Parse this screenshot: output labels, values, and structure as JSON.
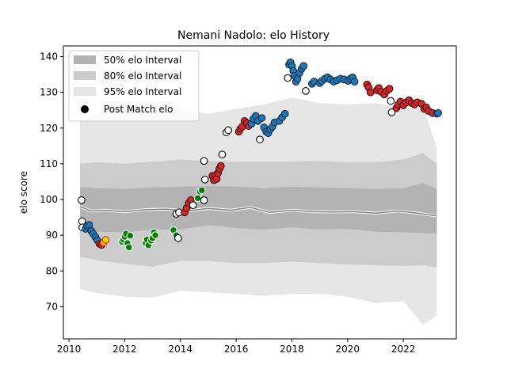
{
  "chart_data": {
    "type": "scatter",
    "title": "Nemani Nadolo: elo History",
    "xlabel": "",
    "ylabel": "elo score",
    "xlim": [
      2009.8,
      2023.9
    ],
    "ylim": [
      61,
      143
    ],
    "xticks": [
      2010,
      2012,
      2014,
      2016,
      2018,
      2020,
      2022
    ],
    "yticks": [
      70,
      80,
      90,
      100,
      110,
      120,
      130,
      140
    ],
    "grid": false,
    "legend_position": "top-left",
    "legend": {
      "band50": "50% elo Interval",
      "band80": "80% elo Interval",
      "band95": "95% elo Interval",
      "points": "Post Match elo"
    },
    "band_colors": {
      "band50": "#b3b3b3",
      "band80": "#cccccc",
      "band95": "#e6e6e6"
    },
    "point_colors": {
      "blue": "#1f77b4",
      "red": "#d62728",
      "green": "#008000",
      "white": "#ffffff",
      "orange": "#ff7f0e"
    },
    "mean_line": {
      "x": [
        2010.4,
        2010.8,
        2011.3,
        2012.0,
        2012.8,
        2013.5,
        2014.2,
        2015.0,
        2015.8,
        2016.5,
        2017.2,
        2018.0,
        2018.8,
        2019.5,
        2020.2,
        2021.0,
        2021.8,
        2022.5,
        2023.2
      ],
      "y": [
        98.0,
        96.8,
        97.0,
        96.6,
        97.2,
        97.3,
        96.8,
        97.5,
        97.0,
        97.8,
        96.4,
        97.0,
        96.6,
        96.5,
        96.6,
        96.2,
        96.8,
        96.2,
        95.4
      ]
    },
    "bands": {
      "x": [
        2010.4,
        2011.0,
        2012.0,
        2013.0,
        2014.0,
        2015.0,
        2016.0,
        2017.0,
        2018.0,
        2019.0,
        2020.0,
        2021.0,
        2022.0,
        2022.7,
        2023.2
      ],
      "p25": [
        92.0,
        91.0,
        90.8,
        91.6,
        91.6,
        92.8,
        92.0,
        91.6,
        92.2,
        91.6,
        91.8,
        91.0,
        90.8,
        90.6,
        90.5
      ],
      "p75": [
        103.5,
        103.2,
        103.0,
        103.4,
        103.6,
        103.8,
        103.6,
        103.2,
        103.6,
        103.4,
        103.2,
        103.0,
        103.2,
        104.6,
        103.0
      ],
      "p10": [
        84.0,
        83.0,
        82.0,
        81.2,
        82.8,
        82.8,
        82.2,
        82.2,
        82.6,
        82.2,
        81.8,
        81.6,
        81.4,
        81.6,
        81.0
      ],
      "p90": [
        110.0,
        110.4,
        110.0,
        110.6,
        111.2,
        110.8,
        110.6,
        110.6,
        110.6,
        110.8,
        110.4,
        110.4,
        111.2,
        113.0,
        110.0
      ],
      "p2_5": [
        75.0,
        73.8,
        72.8,
        72.6,
        74.4,
        74.0,
        73.6,
        73.0,
        73.6,
        73.6,
        72.8,
        71.0,
        71.6,
        65.0,
        67.5
      ],
      "p97_5": [
        122.0,
        124.0,
        126.6,
        126.8,
        125.0,
        124.0,
        125.4,
        126.6,
        128.6,
        127.0,
        126.6,
        127.0,
        125.6,
        126.2,
        114.5
      ]
    },
    "series": [
      {
        "name": "Post Match elo",
        "points": [
          {
            "x": 2010.45,
            "y": 99.8,
            "c": "white"
          },
          {
            "x": 2010.47,
            "y": 93.9,
            "c": "white"
          },
          {
            "x": 2010.48,
            "y": 92.2,
            "c": "white"
          },
          {
            "x": 2010.6,
            "y": 91.8,
            "c": "blue"
          },
          {
            "x": 2010.65,
            "y": 92.6,
            "c": "blue"
          },
          {
            "x": 2010.72,
            "y": 92.9,
            "c": "blue"
          },
          {
            "x": 2010.8,
            "y": 91.2,
            "c": "blue"
          },
          {
            "x": 2010.87,
            "y": 90.4,
            "c": "blue"
          },
          {
            "x": 2010.95,
            "y": 89.5,
            "c": "blue"
          },
          {
            "x": 2011.02,
            "y": 88.6,
            "c": "blue"
          },
          {
            "x": 2011.1,
            "y": 87.6,
            "c": "red"
          },
          {
            "x": 2011.17,
            "y": 87.3,
            "c": "red"
          },
          {
            "x": 2011.25,
            "y": 88.0,
            "c": "orange"
          },
          {
            "x": 2011.32,
            "y": 88.7,
            "c": "orange"
          },
          {
            "x": 2011.9,
            "y": 88.2,
            "c": "green"
          },
          {
            "x": 2011.95,
            "y": 88.8,
            "c": "green"
          },
          {
            "x": 2012.0,
            "y": 89.6,
            "c": "green"
          },
          {
            "x": 2012.05,
            "y": 90.4,
            "c": "green"
          },
          {
            "x": 2012.1,
            "y": 87.8,
            "c": "green"
          },
          {
            "x": 2012.15,
            "y": 86.6,
            "c": "green"
          },
          {
            "x": 2012.2,
            "y": 89.9,
            "c": "green"
          },
          {
            "x": 2012.75,
            "y": 87.8,
            "c": "green"
          },
          {
            "x": 2012.8,
            "y": 88.8,
            "c": "green"
          },
          {
            "x": 2012.85,
            "y": 87.2,
            "c": "green"
          },
          {
            "x": 2012.95,
            "y": 88.5,
            "c": "green"
          },
          {
            "x": 2013.0,
            "y": 89.2,
            "c": "green"
          },
          {
            "x": 2013.05,
            "y": 90.8,
            "c": "green"
          },
          {
            "x": 2013.1,
            "y": 90.0,
            "c": "green"
          },
          {
            "x": 2013.75,
            "y": 91.4,
            "c": "green"
          },
          {
            "x": 2013.85,
            "y": 90.0,
            "c": "green"
          },
          {
            "x": 2013.92,
            "y": 89.2,
            "c": "white"
          },
          {
            "x": 2013.85,
            "y": 96.0,
            "c": "white"
          },
          {
            "x": 2013.95,
            "y": 96.4,
            "c": "white"
          },
          {
            "x": 2014.15,
            "y": 96.4,
            "c": "red"
          },
          {
            "x": 2014.22,
            "y": 97.6,
            "c": "red"
          },
          {
            "x": 2014.3,
            "y": 99.0,
            "c": "red"
          },
          {
            "x": 2014.37,
            "y": 99.8,
            "c": "red"
          },
          {
            "x": 2014.45,
            "y": 98.4,
            "c": "white"
          },
          {
            "x": 2014.62,
            "y": 100.4,
            "c": "green"
          },
          {
            "x": 2014.7,
            "y": 102.2,
            "c": "green"
          },
          {
            "x": 2014.77,
            "y": 102.6,
            "c": "green"
          },
          {
            "x": 2014.85,
            "y": 99.8,
            "c": "white"
          },
          {
            "x": 2014.85,
            "y": 110.8,
            "c": "white"
          },
          {
            "x": 2014.88,
            "y": 105.6,
            "c": "white"
          },
          {
            "x": 2015.15,
            "y": 106.6,
            "c": "red"
          },
          {
            "x": 2015.2,
            "y": 105.4,
            "c": "red"
          },
          {
            "x": 2015.25,
            "y": 106.8,
            "c": "red"
          },
          {
            "x": 2015.3,
            "y": 105.8,
            "c": "red"
          },
          {
            "x": 2015.35,
            "y": 107.4,
            "c": "red"
          },
          {
            "x": 2015.4,
            "y": 108.6,
            "c": "red"
          },
          {
            "x": 2015.45,
            "y": 109.4,
            "c": "red"
          },
          {
            "x": 2015.5,
            "y": 112.6,
            "c": "white"
          },
          {
            "x": 2015.65,
            "y": 118.8,
            "c": "white"
          },
          {
            "x": 2015.72,
            "y": 119.4,
            "c": "white"
          },
          {
            "x": 2016.1,
            "y": 119.0,
            "c": "red"
          },
          {
            "x": 2016.15,
            "y": 119.8,
            "c": "red"
          },
          {
            "x": 2016.22,
            "y": 120.4,
            "c": "red"
          },
          {
            "x": 2016.3,
            "y": 122.0,
            "c": "red"
          },
          {
            "x": 2016.38,
            "y": 121.4,
            "c": "red"
          },
          {
            "x": 2016.45,
            "y": 120.6,
            "c": "red"
          },
          {
            "x": 2016.55,
            "y": 121.2,
            "c": "blue"
          },
          {
            "x": 2016.62,
            "y": 122.6,
            "c": "blue"
          },
          {
            "x": 2016.7,
            "y": 123.4,
            "c": "blue"
          },
          {
            "x": 2016.78,
            "y": 122.0,
            "c": "blue"
          },
          {
            "x": 2016.85,
            "y": 116.8,
            "c": "white"
          },
          {
            "x": 2016.92,
            "y": 122.8,
            "c": "blue"
          },
          {
            "x": 2017.0,
            "y": 120.2,
            "c": "blue"
          },
          {
            "x": 2017.08,
            "y": 119.0,
            "c": "blue"
          },
          {
            "x": 2017.15,
            "y": 118.6,
            "c": "blue"
          },
          {
            "x": 2017.22,
            "y": 119.6,
            "c": "blue"
          },
          {
            "x": 2017.3,
            "y": 120.4,
            "c": "blue"
          },
          {
            "x": 2017.38,
            "y": 121.6,
            "c": "blue"
          },
          {
            "x": 2017.55,
            "y": 122.0,
            "c": "blue"
          },
          {
            "x": 2017.65,
            "y": 123.0,
            "c": "blue"
          },
          {
            "x": 2017.75,
            "y": 124.0,
            "c": "blue"
          },
          {
            "x": 2017.85,
            "y": 134.0,
            "c": "white"
          },
          {
            "x": 2017.9,
            "y": 137.8,
            "c": "blue"
          },
          {
            "x": 2017.95,
            "y": 138.4,
            "c": "blue"
          },
          {
            "x": 2018.0,
            "y": 137.4,
            "c": "blue"
          },
          {
            "x": 2018.05,
            "y": 136.0,
            "c": "blue"
          },
          {
            "x": 2018.1,
            "y": 134.6,
            "c": "blue"
          },
          {
            "x": 2018.15,
            "y": 133.0,
            "c": "blue"
          },
          {
            "x": 2018.2,
            "y": 133.8,
            "c": "blue"
          },
          {
            "x": 2018.27,
            "y": 135.4,
            "c": "blue"
          },
          {
            "x": 2018.35,
            "y": 136.6,
            "c": "blue"
          },
          {
            "x": 2018.42,
            "y": 137.4,
            "c": "blue"
          },
          {
            "x": 2018.5,
            "y": 130.4,
            "c": "white"
          },
          {
            "x": 2018.72,
            "y": 132.4,
            "c": "blue"
          },
          {
            "x": 2018.8,
            "y": 133.0,
            "c": "blue"
          },
          {
            "x": 2019.0,
            "y": 132.6,
            "c": "blue"
          },
          {
            "x": 2019.08,
            "y": 133.2,
            "c": "blue"
          },
          {
            "x": 2019.18,
            "y": 133.8,
            "c": "blue"
          },
          {
            "x": 2019.28,
            "y": 134.2,
            "c": "blue"
          },
          {
            "x": 2019.38,
            "y": 133.6,
            "c": "blue"
          },
          {
            "x": 2019.5,
            "y": 133.0,
            "c": "blue"
          },
          {
            "x": 2019.62,
            "y": 133.4,
            "c": "blue"
          },
          {
            "x": 2019.75,
            "y": 133.8,
            "c": "blue"
          },
          {
            "x": 2019.88,
            "y": 133.6,
            "c": "blue"
          },
          {
            "x": 2020.02,
            "y": 133.2,
            "c": "blue"
          },
          {
            "x": 2020.1,
            "y": 133.8,
            "c": "blue"
          },
          {
            "x": 2020.18,
            "y": 134.2,
            "c": "blue"
          },
          {
            "x": 2020.25,
            "y": 133.0,
            "c": "blue"
          },
          {
            "x": 2020.7,
            "y": 132.2,
            "c": "red"
          },
          {
            "x": 2020.75,
            "y": 131.4,
            "c": "red"
          },
          {
            "x": 2020.82,
            "y": 130.0,
            "c": "red"
          },
          {
            "x": 2021.05,
            "y": 130.6,
            "c": "red"
          },
          {
            "x": 2021.12,
            "y": 131.2,
            "c": "red"
          },
          {
            "x": 2021.2,
            "y": 130.2,
            "c": "red"
          },
          {
            "x": 2021.32,
            "y": 129.4,
            "c": "red"
          },
          {
            "x": 2021.4,
            "y": 130.4,
            "c": "red"
          },
          {
            "x": 2021.5,
            "y": 131.0,
            "c": "red"
          },
          {
            "x": 2021.55,
            "y": 127.6,
            "c": "white"
          },
          {
            "x": 2021.58,
            "y": 124.4,
            "c": "white"
          },
          {
            "x": 2021.75,
            "y": 125.6,
            "c": "red"
          },
          {
            "x": 2021.82,
            "y": 126.6,
            "c": "red"
          },
          {
            "x": 2021.9,
            "y": 127.4,
            "c": "red"
          },
          {
            "x": 2022.0,
            "y": 126.4,
            "c": "red"
          },
          {
            "x": 2022.1,
            "y": 127.2,
            "c": "red"
          },
          {
            "x": 2022.2,
            "y": 127.8,
            "c": "red"
          },
          {
            "x": 2022.3,
            "y": 127.0,
            "c": "red"
          },
          {
            "x": 2022.4,
            "y": 126.6,
            "c": "red"
          },
          {
            "x": 2022.5,
            "y": 127.2,
            "c": "red"
          },
          {
            "x": 2022.65,
            "y": 126.8,
            "c": "red"
          },
          {
            "x": 2022.75,
            "y": 125.4,
            "c": "red"
          },
          {
            "x": 2022.82,
            "y": 125.8,
            "c": "red"
          },
          {
            "x": 2022.9,
            "y": 124.8,
            "c": "red"
          },
          {
            "x": 2023.05,
            "y": 124.2,
            "c": "red"
          },
          {
            "x": 2023.2,
            "y": 124.0,
            "c": "blue"
          },
          {
            "x": 2023.25,
            "y": 124.2,
            "c": "blue"
          }
        ]
      }
    ]
  }
}
